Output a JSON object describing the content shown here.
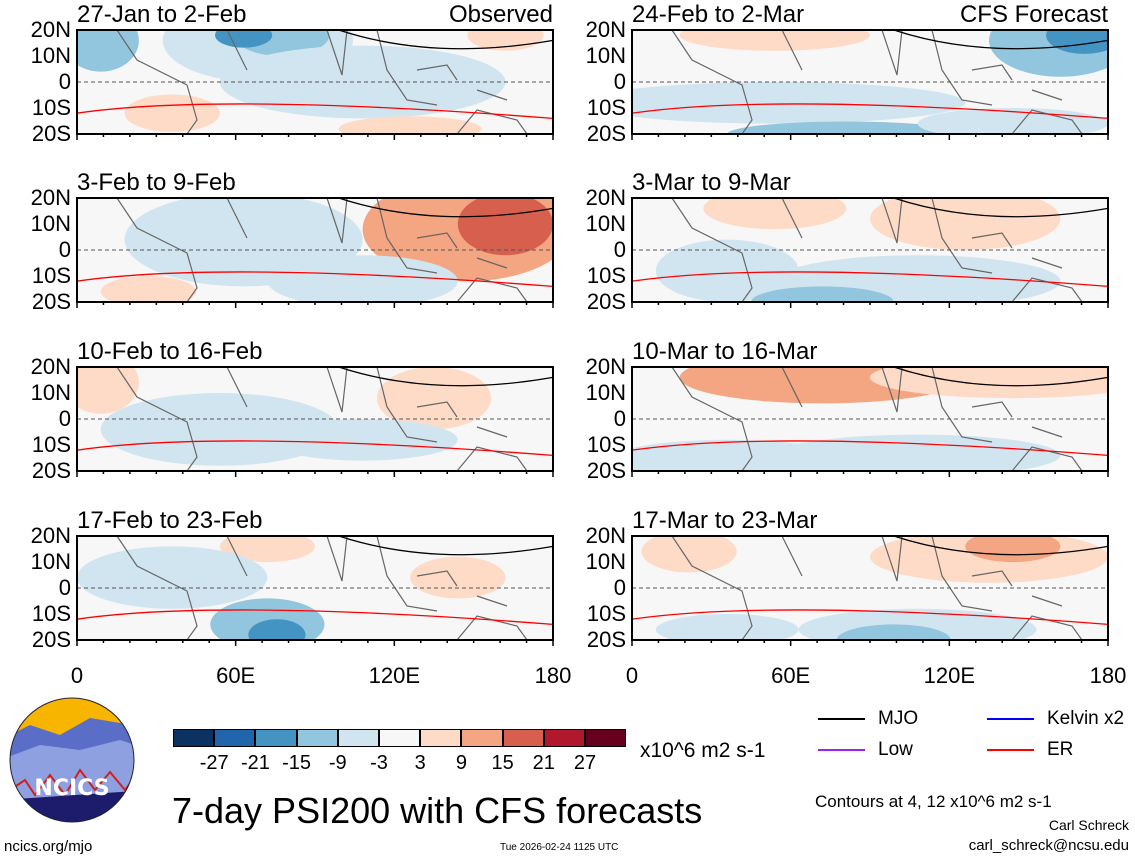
{
  "title": "7-day PSI200 with CFS forecasts",
  "panels_observed_label": "Observed",
  "panels_forecast_label": "CFS Forecast",
  "panels": [
    {
      "period": "27-Jan to 2-Feb",
      "kind": "Observed"
    },
    {
      "period": "24-Feb to 2-Mar",
      "kind": "CFS Forecast"
    },
    {
      "period": "3-Feb to 9-Feb"
    },
    {
      "period": "3-Mar to 9-Mar"
    },
    {
      "period": "10-Feb to 16-Feb"
    },
    {
      "period": "10-Mar to 16-Mar"
    },
    {
      "period": "17-Feb to 23-Feb"
    },
    {
      "period": "17-Mar to 23-Mar"
    }
  ],
  "lat_ticks": [
    "20N",
    "10N",
    "0",
    "10S",
    "20S"
  ],
  "lon_ticks": [
    "0",
    "60E",
    "120E",
    "180"
  ],
  "colorbar": {
    "colors": [
      "#0b3260",
      "#2166ac",
      "#4393c3",
      "#92c5de",
      "#d1e5f0",
      "#f7f7f7",
      "#fddbc7",
      "#f4a582",
      "#d6604d",
      "#b2182b",
      "#67001f"
    ],
    "labels": [
      "-27",
      "-21",
      "-15",
      "-9",
      "-3",
      "3",
      "9",
      "15",
      "21",
      "27"
    ],
    "units": "x10^6 m2 s-1"
  },
  "legend": [
    {
      "label": "MJO",
      "color": "#000000"
    },
    {
      "label": "Kelvin x2",
      "color": "#0000ff"
    },
    {
      "label": "Low",
      "color": "#a020f0"
    },
    {
      "label": "ER",
      "color": "#ff0000"
    }
  ],
  "contours_note": "Contours at 4, 12 x10^6 m2 s-1",
  "author": "Carl Schreck",
  "email": "carl_schreck@ncsu.edu",
  "site": "ncics.org/mjo",
  "timestamp": "Tue 2026-02-24 1125 UTC",
  "logo_text": "NCICS"
}
